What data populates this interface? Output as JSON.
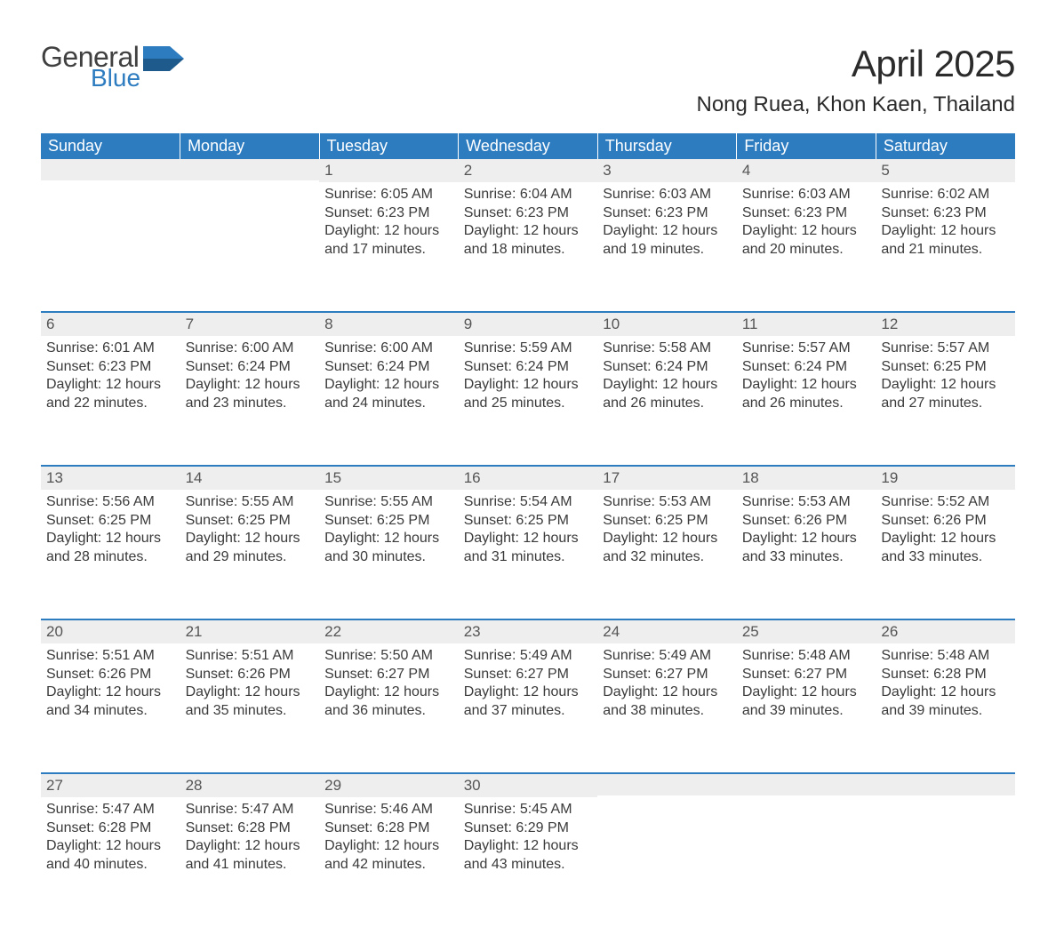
{
  "logo": {
    "word1": "General",
    "word2": "Blue",
    "word1_color": "#404040",
    "word2_color": "#2d7cc0",
    "flag_color": "#2d7cc0"
  },
  "title": "April 2025",
  "location": "Nong Ruea, Khon Kaen, Thailand",
  "colors": {
    "header_bg": "#2d7cc0",
    "header_text": "#ffffff",
    "daynum_bg": "#eeeeee",
    "daynum_text": "#555555",
    "body_text": "#3a3a3a",
    "rule": "#2d7cc0",
    "page_bg": "#ffffff"
  },
  "fonts": {
    "family": "Segoe UI, Arial, Helvetica, sans-serif",
    "title_size_pt": 32,
    "location_size_pt": 18,
    "header_size_pt": 14,
    "daynum_size_pt": 13,
    "body_size_pt": 12
  },
  "weekdays": [
    "Sunday",
    "Monday",
    "Tuesday",
    "Wednesday",
    "Thursday",
    "Friday",
    "Saturday"
  ],
  "weeks": [
    [
      {
        "n": "",
        "sunrise": "",
        "sunset": "",
        "day1": "",
        "day2": ""
      },
      {
        "n": "",
        "sunrise": "",
        "sunset": "",
        "day1": "",
        "day2": ""
      },
      {
        "n": "1",
        "sunrise": "Sunrise: 6:05 AM",
        "sunset": "Sunset: 6:23 PM",
        "day1": "Daylight: 12 hours",
        "day2": "and 17 minutes."
      },
      {
        "n": "2",
        "sunrise": "Sunrise: 6:04 AM",
        "sunset": "Sunset: 6:23 PM",
        "day1": "Daylight: 12 hours",
        "day2": "and 18 minutes."
      },
      {
        "n": "3",
        "sunrise": "Sunrise: 6:03 AM",
        "sunset": "Sunset: 6:23 PM",
        "day1": "Daylight: 12 hours",
        "day2": "and 19 minutes."
      },
      {
        "n": "4",
        "sunrise": "Sunrise: 6:03 AM",
        "sunset": "Sunset: 6:23 PM",
        "day1": "Daylight: 12 hours",
        "day2": "and 20 minutes."
      },
      {
        "n": "5",
        "sunrise": "Sunrise: 6:02 AM",
        "sunset": "Sunset: 6:23 PM",
        "day1": "Daylight: 12 hours",
        "day2": "and 21 minutes."
      }
    ],
    [
      {
        "n": "6",
        "sunrise": "Sunrise: 6:01 AM",
        "sunset": "Sunset: 6:23 PM",
        "day1": "Daylight: 12 hours",
        "day2": "and 22 minutes."
      },
      {
        "n": "7",
        "sunrise": "Sunrise: 6:00 AM",
        "sunset": "Sunset: 6:24 PM",
        "day1": "Daylight: 12 hours",
        "day2": "and 23 minutes."
      },
      {
        "n": "8",
        "sunrise": "Sunrise: 6:00 AM",
        "sunset": "Sunset: 6:24 PM",
        "day1": "Daylight: 12 hours",
        "day2": "and 24 minutes."
      },
      {
        "n": "9",
        "sunrise": "Sunrise: 5:59 AM",
        "sunset": "Sunset: 6:24 PM",
        "day1": "Daylight: 12 hours",
        "day2": "and 25 minutes."
      },
      {
        "n": "10",
        "sunrise": "Sunrise: 5:58 AM",
        "sunset": "Sunset: 6:24 PM",
        "day1": "Daylight: 12 hours",
        "day2": "and 26 minutes."
      },
      {
        "n": "11",
        "sunrise": "Sunrise: 5:57 AM",
        "sunset": "Sunset: 6:24 PM",
        "day1": "Daylight: 12 hours",
        "day2": "and 26 minutes."
      },
      {
        "n": "12",
        "sunrise": "Sunrise: 5:57 AM",
        "sunset": "Sunset: 6:25 PM",
        "day1": "Daylight: 12 hours",
        "day2": "and 27 minutes."
      }
    ],
    [
      {
        "n": "13",
        "sunrise": "Sunrise: 5:56 AM",
        "sunset": "Sunset: 6:25 PM",
        "day1": "Daylight: 12 hours",
        "day2": "and 28 minutes."
      },
      {
        "n": "14",
        "sunrise": "Sunrise: 5:55 AM",
        "sunset": "Sunset: 6:25 PM",
        "day1": "Daylight: 12 hours",
        "day2": "and 29 minutes."
      },
      {
        "n": "15",
        "sunrise": "Sunrise: 5:55 AM",
        "sunset": "Sunset: 6:25 PM",
        "day1": "Daylight: 12 hours",
        "day2": "and 30 minutes."
      },
      {
        "n": "16",
        "sunrise": "Sunrise: 5:54 AM",
        "sunset": "Sunset: 6:25 PM",
        "day1": "Daylight: 12 hours",
        "day2": "and 31 minutes."
      },
      {
        "n": "17",
        "sunrise": "Sunrise: 5:53 AM",
        "sunset": "Sunset: 6:25 PM",
        "day1": "Daylight: 12 hours",
        "day2": "and 32 minutes."
      },
      {
        "n": "18",
        "sunrise": "Sunrise: 5:53 AM",
        "sunset": "Sunset: 6:26 PM",
        "day1": "Daylight: 12 hours",
        "day2": "and 33 minutes."
      },
      {
        "n": "19",
        "sunrise": "Sunrise: 5:52 AM",
        "sunset": "Sunset: 6:26 PM",
        "day1": "Daylight: 12 hours",
        "day2": "and 33 minutes."
      }
    ],
    [
      {
        "n": "20",
        "sunrise": "Sunrise: 5:51 AM",
        "sunset": "Sunset: 6:26 PM",
        "day1": "Daylight: 12 hours",
        "day2": "and 34 minutes."
      },
      {
        "n": "21",
        "sunrise": "Sunrise: 5:51 AM",
        "sunset": "Sunset: 6:26 PM",
        "day1": "Daylight: 12 hours",
        "day2": "and 35 minutes."
      },
      {
        "n": "22",
        "sunrise": "Sunrise: 5:50 AM",
        "sunset": "Sunset: 6:27 PM",
        "day1": "Daylight: 12 hours",
        "day2": "and 36 minutes."
      },
      {
        "n": "23",
        "sunrise": "Sunrise: 5:49 AM",
        "sunset": "Sunset: 6:27 PM",
        "day1": "Daylight: 12 hours",
        "day2": "and 37 minutes."
      },
      {
        "n": "24",
        "sunrise": "Sunrise: 5:49 AM",
        "sunset": "Sunset: 6:27 PM",
        "day1": "Daylight: 12 hours",
        "day2": "and 38 minutes."
      },
      {
        "n": "25",
        "sunrise": "Sunrise: 5:48 AM",
        "sunset": "Sunset: 6:27 PM",
        "day1": "Daylight: 12 hours",
        "day2": "and 39 minutes."
      },
      {
        "n": "26",
        "sunrise": "Sunrise: 5:48 AM",
        "sunset": "Sunset: 6:28 PM",
        "day1": "Daylight: 12 hours",
        "day2": "and 39 minutes."
      }
    ],
    [
      {
        "n": "27",
        "sunrise": "Sunrise: 5:47 AM",
        "sunset": "Sunset: 6:28 PM",
        "day1": "Daylight: 12 hours",
        "day2": "and 40 minutes."
      },
      {
        "n": "28",
        "sunrise": "Sunrise: 5:47 AM",
        "sunset": "Sunset: 6:28 PM",
        "day1": "Daylight: 12 hours",
        "day2": "and 41 minutes."
      },
      {
        "n": "29",
        "sunrise": "Sunrise: 5:46 AM",
        "sunset": "Sunset: 6:28 PM",
        "day1": "Daylight: 12 hours",
        "day2": "and 42 minutes."
      },
      {
        "n": "30",
        "sunrise": "Sunrise: 5:45 AM",
        "sunset": "Sunset: 6:29 PM",
        "day1": "Daylight: 12 hours",
        "day2": "and 43 minutes."
      },
      {
        "n": "",
        "sunrise": "",
        "sunset": "",
        "day1": "",
        "day2": ""
      },
      {
        "n": "",
        "sunrise": "",
        "sunset": "",
        "day1": "",
        "day2": ""
      },
      {
        "n": "",
        "sunrise": "",
        "sunset": "",
        "day1": "",
        "day2": ""
      }
    ]
  ]
}
